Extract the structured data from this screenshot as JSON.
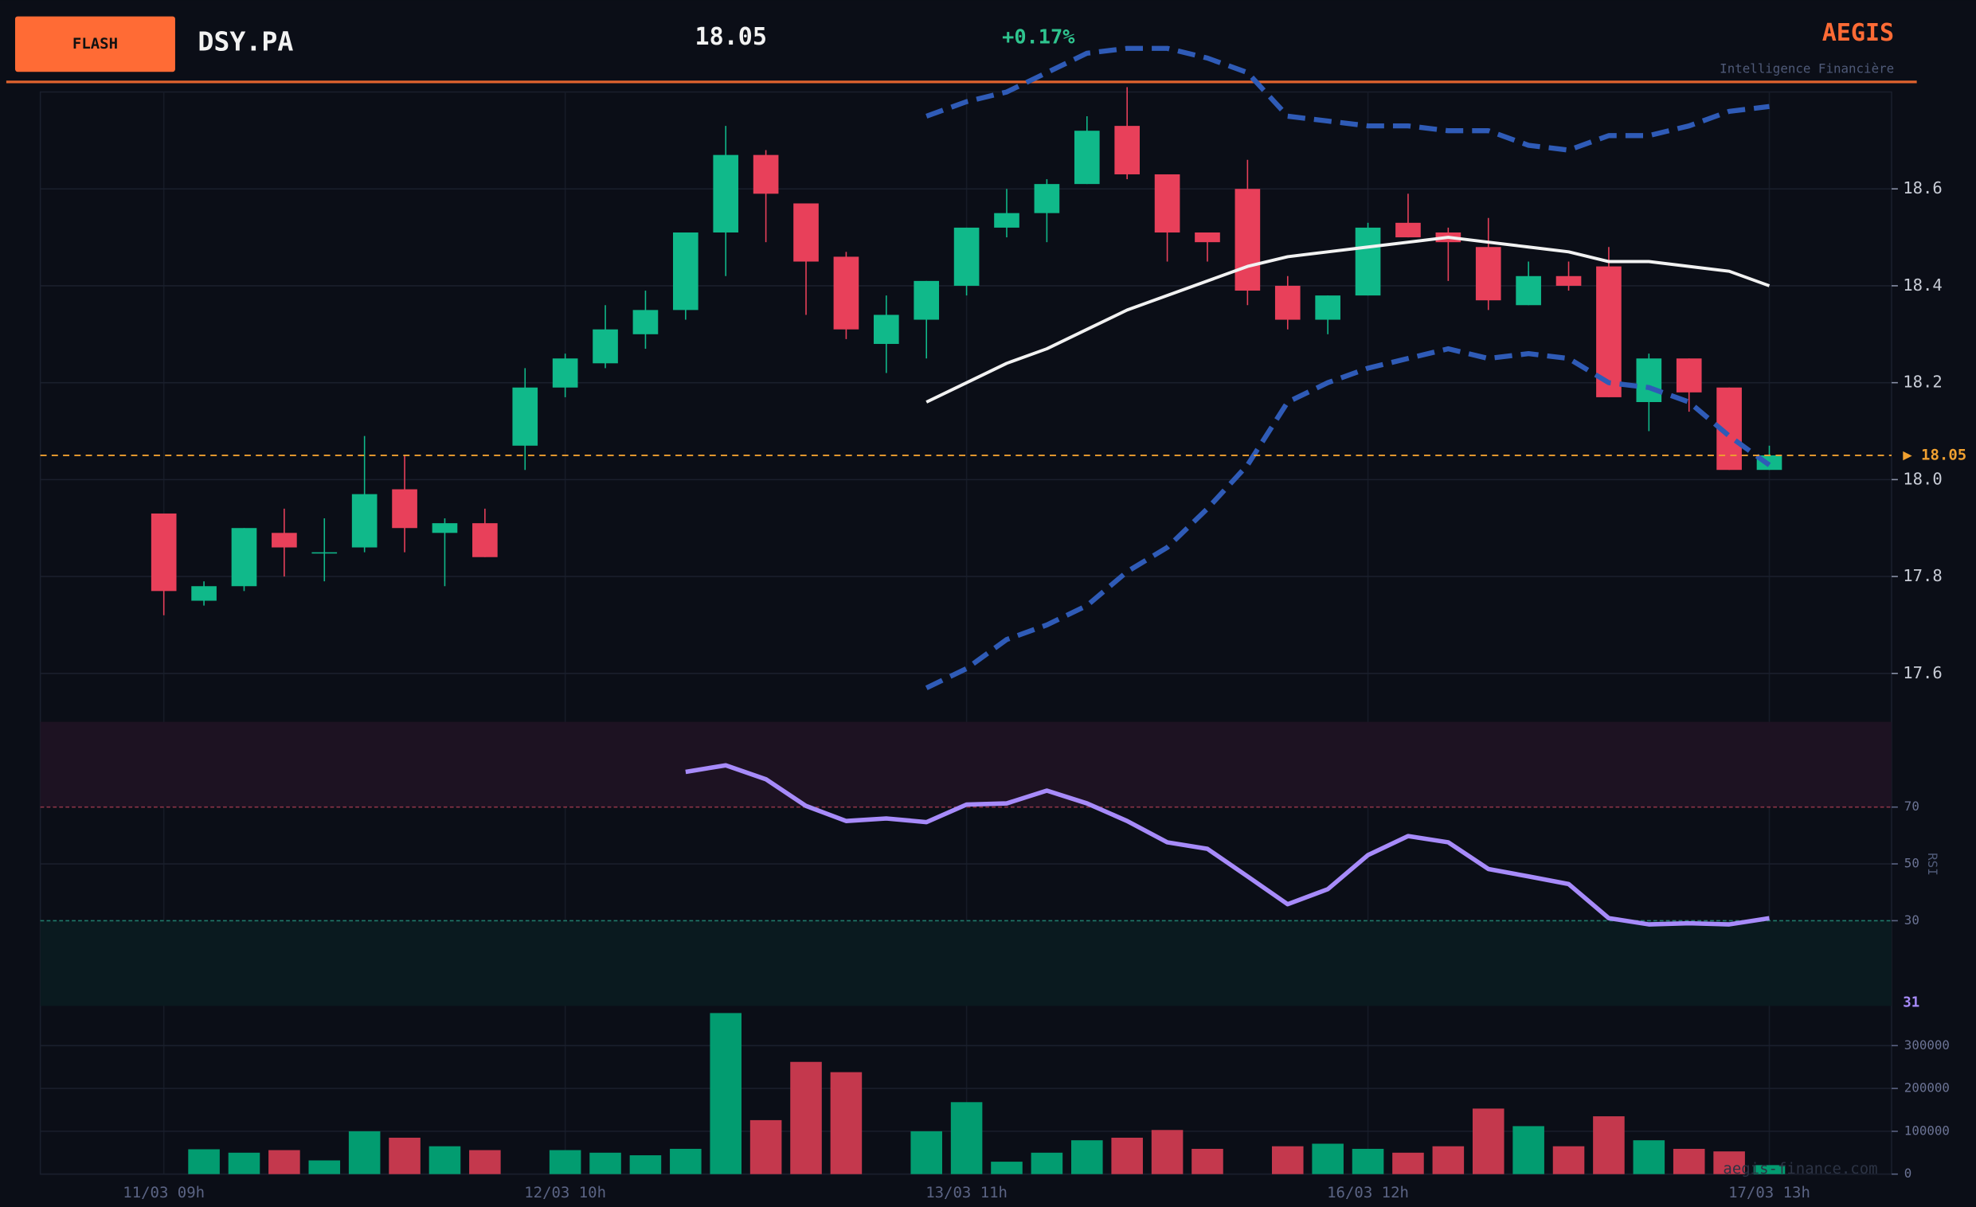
{
  "header": {
    "badge": "FLASH",
    "ticker": "DSY.PA",
    "price": "18.05",
    "change": "+0.17%",
    "brand": "AEGIS",
    "tagline": "Intelligence Financière"
  },
  "watermark": "aegis-finance.com",
  "chart_data": [
    {
      "type": "candlestick",
      "categories": [
        "11/03 09h",
        null,
        null,
        null,
        null,
        null,
        null,
        null,
        null,
        null,
        "12/03 10h",
        null,
        null,
        null,
        null,
        null,
        null,
        null,
        null,
        null,
        "13/03 11h",
        null,
        null,
        null,
        null,
        null,
        null,
        null,
        null,
        null,
        "16/03 12h",
        null,
        null,
        null,
        null,
        null,
        null,
        null,
        null,
        null,
        "17/03 13h"
      ],
      "open": [
        17.93,
        17.75,
        17.78,
        17.89,
        17.85,
        17.86,
        17.98,
        17.89,
        17.91,
        18.07,
        18.19,
        18.24,
        18.3,
        18.35,
        18.51,
        18.67,
        18.57,
        18.46,
        18.28,
        18.33,
        18.4,
        18.52,
        18.55,
        18.61,
        18.73,
        18.63,
        18.51,
        18.6,
        18.4,
        18.33,
        18.38,
        18.53,
        18.51,
        18.48,
        18.36,
        18.42,
        18.44,
        18.16,
        18.25,
        18.19,
        18.02
      ],
      "high": [
        17.93,
        17.79,
        17.9,
        17.94,
        17.92,
        18.09,
        18.05,
        17.92,
        17.94,
        18.23,
        18.26,
        18.36,
        18.39,
        18.51,
        18.73,
        18.68,
        18.57,
        18.47,
        18.38,
        18.41,
        18.52,
        18.6,
        18.62,
        18.75,
        18.81,
        18.63,
        18.51,
        18.66,
        18.42,
        18.38,
        18.53,
        18.59,
        18.52,
        18.54,
        18.45,
        18.45,
        18.48,
        18.26,
        18.25,
        18.19,
        18.07
      ],
      "low": [
        17.72,
        17.74,
        17.77,
        17.8,
        17.79,
        17.85,
        17.85,
        17.78,
        17.84,
        18.02,
        18.17,
        18.23,
        18.27,
        18.33,
        18.42,
        18.49,
        18.34,
        18.29,
        18.22,
        18.25,
        18.38,
        18.5,
        18.49,
        18.61,
        18.62,
        18.45,
        18.45,
        18.36,
        18.31,
        18.3,
        18.38,
        18.5,
        18.41,
        18.35,
        18.36,
        18.39,
        18.17,
        18.1,
        18.14,
        18.02,
        18.02
      ],
      "close": [
        17.77,
        17.78,
        17.9,
        17.86,
        17.85,
        17.97,
        17.9,
        17.91,
        17.84,
        18.19,
        18.25,
        18.31,
        18.35,
        18.51,
        18.67,
        18.59,
        18.45,
        18.31,
        18.34,
        18.41,
        18.52,
        18.55,
        18.61,
        18.72,
        18.63,
        18.51,
        18.49,
        18.39,
        18.33,
        18.38,
        18.52,
        18.5,
        18.49,
        18.37,
        18.42,
        18.4,
        18.17,
        18.25,
        18.18,
        18.02,
        18.05
      ],
      "up_color": "#10b98a",
      "down_color": "#e8405a",
      "overlays": [
        {
          "color": "#2f5bb7",
          "dashed": true,
          "values": [
            null,
            null,
            null,
            null,
            null,
            null,
            null,
            null,
            null,
            null,
            null,
            null,
            null,
            null,
            null,
            null,
            null,
            null,
            null,
            18.75,
            18.78,
            18.8,
            18.84,
            18.88,
            18.89,
            18.89,
            18.87,
            18.84,
            18.75,
            18.74,
            18.73,
            18.73,
            18.72,
            18.72,
            18.69,
            18.68,
            18.71,
            18.71,
            18.73,
            18.76,
            18.77
          ]
        },
        {
          "color": "#f2f2f2",
          "dashed": false,
          "values": [
            null,
            null,
            null,
            null,
            null,
            null,
            null,
            null,
            null,
            null,
            null,
            null,
            null,
            null,
            null,
            null,
            null,
            null,
            null,
            18.16,
            18.2,
            18.24,
            18.27,
            18.31,
            18.35,
            18.38,
            18.41,
            18.44,
            18.46,
            18.47,
            18.48,
            18.49,
            18.5,
            18.49,
            18.48,
            18.47,
            18.45,
            18.45,
            18.44,
            18.43,
            18.4
          ]
        },
        {
          "color": "#2f5bb7",
          "dashed": true,
          "values": [
            null,
            null,
            null,
            null,
            null,
            null,
            null,
            null,
            null,
            null,
            null,
            null,
            null,
            null,
            null,
            null,
            null,
            null,
            null,
            17.57,
            17.61,
            17.67,
            17.7,
            17.74,
            17.81,
            17.86,
            17.94,
            18.03,
            18.16,
            18.2,
            18.23,
            18.25,
            18.27,
            18.25,
            18.26,
            18.25,
            18.2,
            18.19,
            18.16,
            18.09,
            18.03
          ]
        }
      ],
      "price_line": {
        "value": 18.05,
        "label": "▶ 18.05",
        "color": "#f0a030"
      },
      "ylim": [
        17.5,
        18.8
      ],
      "yticks": [
        17.6,
        17.8,
        {
          "value": 18,
          "label": "18.0"
        },
        18.2,
        18.4,
        18.6
      ],
      "grid": true
    },
    {
      "type": "line",
      "y_label": "RSI",
      "color": "#a78bfa",
      "values": [
        null,
        null,
        null,
        null,
        null,
        null,
        null,
        null,
        null,
        null,
        null,
        null,
        null,
        82.4,
        84.7,
        79.8,
        70.4,
        65.1,
        66.0,
        64.7,
        70.9,
        71.3,
        75.8,
        71.3,
        65.1,
        57.6,
        55.3,
        45.6,
        35.8,
        41.1,
        53.1,
        59.8,
        57.6,
        48.2,
        45.6,
        42.9,
        30.9,
        28.7,
        29.1,
        28.7,
        30.9
      ],
      "last_value_label": "31",
      "overbought": [
        70,
        100
      ],
      "overbought_color": "#1d1222",
      "oversold": [
        0,
        30
      ],
      "oversold_color": "#0a1a1f",
      "ylim": [
        0,
        100
      ],
      "yticks": [
        30,
        50,
        70
      ]
    },
    {
      "type": "bar",
      "up_color": "#029c70",
      "down_color": "#c4384d",
      "values": [
        null,
        58000,
        50000,
        56000,
        32000,
        100000,
        85000,
        65000,
        56000,
        null,
        56000,
        50000,
        44000,
        59000,
        376000,
        126000,
        262000,
        238000,
        null,
        100000,
        168000,
        29000,
        50000,
        79000,
        85000,
        103000,
        59000,
        null,
        65000,
        71000,
        59000,
        50000,
        65000,
        153000,
        112000,
        65000,
        135000,
        79000,
        59000,
        53000,
        21000
      ],
      "ylim": [
        0,
        400000
      ],
      "yticks": [
        0,
        100000,
        200000,
        300000
      ]
    }
  ]
}
